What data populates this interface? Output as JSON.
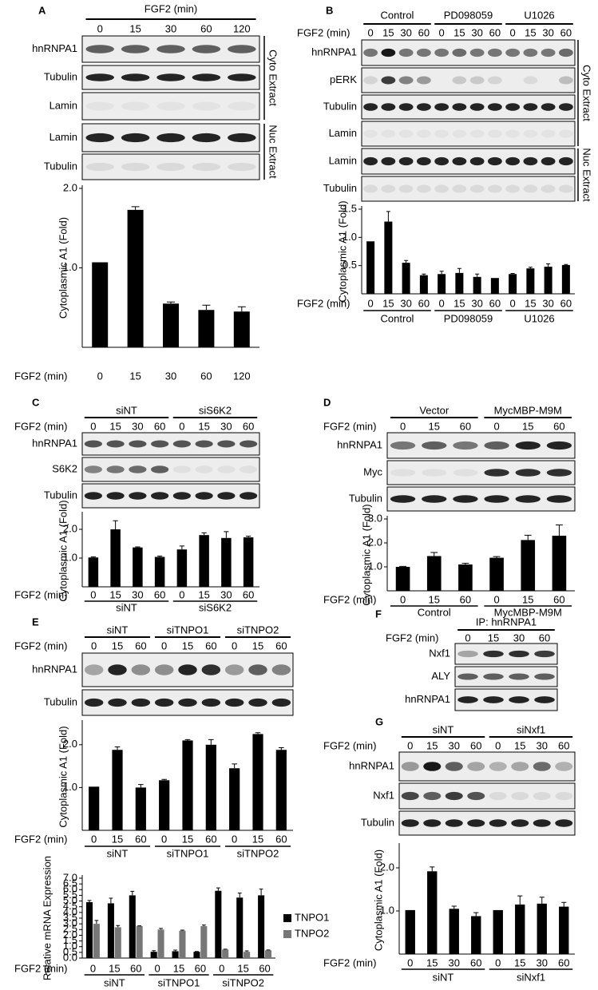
{
  "panels": [
    {
      "label": "A",
      "blot": {
        "header": [
          "FGF2 (min)"
        ],
        "lanes": [
          "0",
          "15",
          "30",
          "60",
          "120"
        ],
        "rows": [
          "hnRNPA1",
          "Tubulin",
          "Lamin",
          "Lamin",
          "Tubulin"
        ],
        "sides": [
          "Cyto Extract",
          "Nuc Extract"
        ]
      }
    },
    {
      "label": "B",
      "blot": {
        "header": [
          "Control",
          "PD098059",
          "U1026"
        ],
        "lane_title": "FGF2 (min)",
        "lanes": [
          "0",
          "15",
          "30",
          "60",
          "0",
          "15",
          "30",
          "60",
          "0",
          "15",
          "30",
          "60"
        ],
        "rows": [
          "hnRNPA1",
          "pERK",
          "Tubulin",
          "Lamin",
          "Lamin",
          "Tubulin"
        ],
        "sides": [
          "Cyto Extract",
          "Nuc Extract"
        ]
      }
    },
    {
      "label": "C",
      "blot": {
        "header": [
          "siNT",
          "siS6K2"
        ],
        "lane_title": "FGF2 (min)",
        "lanes": [
          "0",
          "15",
          "30",
          "60",
          "0",
          "15",
          "30",
          "60"
        ],
        "rows": [
          "hnRNPA1",
          "S6K2",
          "Tubulin"
        ]
      }
    },
    {
      "label": "D",
      "blot": {
        "header": [
          "Vector",
          "MycMBP-M9M"
        ],
        "lane_title": "FGF2 (min)",
        "lanes": [
          "0",
          "15",
          "60",
          "0",
          "15",
          "60"
        ],
        "rows": [
          "hnRNPA1",
          "Myc",
          "Tubulin"
        ]
      }
    },
    {
      "label": "E",
      "blot": {
        "header": [
          "siNT",
          "siTNPO1",
          "siTNPO2"
        ],
        "lane_title": "FGF2 (min)",
        "lanes": [
          "0",
          "15",
          "60",
          "0",
          "15",
          "60",
          "0",
          "15",
          "60"
        ],
        "rows": [
          "hnRNPA1",
          "Tubulin"
        ]
      }
    },
    {
      "label": "F",
      "blot": {
        "header": [
          "IP: hnRNPA1"
        ],
        "lane_title": "FGF2 (min)",
        "lanes": [
          "0",
          "15",
          "30",
          "60"
        ],
        "rows": [
          "Nxf1",
          "ALY",
          "hnRNPA1"
        ]
      }
    },
    {
      "label": "G",
      "blot": {
        "header": [
          "siNT",
          "siNxf1"
        ],
        "lane_title": "FGF2 (min)",
        "lanes": [
          "0",
          "15",
          "30",
          "60",
          "0",
          "15",
          "30",
          "60"
        ],
        "rows": [
          "hnRNPA1",
          "Nxf1",
          "Tubulin"
        ]
      }
    }
  ],
  "chart_data": [
    {
      "type": "bar",
      "ylabel": "Cytoplasmic A1 (Fold)",
      "xlabel": "FGF2 (min)",
      "categories": [
        "0",
        "15",
        "30",
        "60",
        "120"
      ],
      "values": [
        1.07,
        1.73,
        0.55,
        0.47,
        0.45
      ],
      "errors": [
        0,
        0.04,
        0.02,
        0.06,
        0.06
      ],
      "color": "#000000",
      "ylim": [
        0,
        2.0
      ],
      "yticks": [
        {
          "value": 1,
          "label": "1.0"
        },
        {
          "value": 2,
          "label": "2.0"
        }
      ]
    },
    {
      "type": "bar",
      "ylabel": "Cytoplasmic A1 (Fold)",
      "xlabel": "FGF2 (min)",
      "categories": [
        "0",
        "15",
        "30",
        "60",
        "0",
        "15",
        "30",
        "60",
        "0",
        "15",
        "30",
        "60"
      ],
      "groups": [
        "Control",
        "PD098059",
        "U1026"
      ],
      "values": [
        0.93,
        1.28,
        0.55,
        0.33,
        0.35,
        0.37,
        0.3,
        0.28,
        0.35,
        0.45,
        0.48,
        0.51
      ],
      "errors": [
        0,
        0.18,
        0.04,
        0.02,
        0.05,
        0.08,
        0.05,
        0,
        0.01,
        0.02,
        0.05,
        0.01
      ],
      "color": "#000000",
      "ylim": [
        0,
        1.5
      ],
      "yticks": [
        0.5,
        {
          "value": 1,
          "label": "1.0"
        },
        1.5
      ]
    },
    {
      "type": "bar",
      "ylabel": "Cytoplasmic A1 (Fold)",
      "xlabel": "FGF2 (min)",
      "categories": [
        "0",
        "15",
        "30",
        "60",
        "0",
        "15",
        "30",
        "60"
      ],
      "groups": [
        "siNT",
        "siS6K2"
      ],
      "values": [
        1.02,
        2.0,
        1.37,
        1.04,
        1.3,
        1.8,
        1.7,
        1.72
      ],
      "errors": [
        0.02,
        0.3,
        0.02,
        0.03,
        0.12,
        0.08,
        0.22,
        0.04
      ],
      "color": "#000000",
      "ylim": [
        0,
        2.5
      ],
      "yticks": [
        {
          "value": 1,
          "label": "1.0"
        },
        {
          "value": 2,
          "label": "2.0"
        }
      ]
    },
    {
      "type": "bar",
      "ylabel": "Cytoplasmic A1 (Fold)",
      "xlabel": "FGF2 (min)",
      "categories": [
        "0",
        "15",
        "60",
        "0",
        "15",
        "60"
      ],
      "groups": [
        "Control",
        "MycMBP-M9M"
      ],
      "values": [
        1.0,
        1.45,
        1.1,
        1.38,
        2.12,
        2.3
      ],
      "errors": [
        0.02,
        0.15,
        0.05,
        0.05,
        0.2,
        0.45
      ],
      "color": "#000000",
      "ylim": [
        0,
        3.0
      ],
      "yticks": [
        {
          "value": 1,
          "label": "1.0"
        },
        {
          "value": 2,
          "label": "2.0"
        },
        {
          "value": 3,
          "label": "3.0"
        }
      ]
    },
    {
      "type": "bar",
      "ylabel": "Cytoplasmic A1 (Fold)",
      "xlabel": "FGF2 (min)",
      "categories": [
        "0",
        "15",
        "60",
        "0",
        "15",
        "60",
        "0",
        "15",
        "60"
      ],
      "groups": [
        "siNT",
        "siTNPO1",
        "siTNPO2"
      ],
      "values": [
        1.02,
        1.88,
        1.0,
        1.17,
        2.1,
        2.0,
        1.45,
        2.25,
        1.88
      ],
      "errors": [
        0,
        0.07,
        0.07,
        0.02,
        0.02,
        0.12,
        0.1,
        0.03,
        0.05
      ],
      "color": "#000000",
      "ylim": [
        0,
        2.5
      ],
      "yticks": [
        {
          "value": 1,
          "label": "1.0"
        },
        {
          "value": 2,
          "label": "2.0"
        }
      ]
    },
    {
      "type": "grouped_bar",
      "ylabel": "Relative mRNA Expression",
      "xlabel": "FGF2 (min)",
      "categories": [
        "0",
        "15",
        "60",
        "0",
        "15",
        "60",
        "0",
        "15",
        "60"
      ],
      "groups": [
        "siNT",
        "siTNPO1",
        "siTNPO2"
      ],
      "series": [
        {
          "name": "TNPO1",
          "color": "#000000",
          "values": [
            4.9,
            4.8,
            5.5,
            0.55,
            0.6,
            0.55,
            5.9,
            5.3,
            5.5
          ],
          "errors": [
            0.15,
            0.45,
            0.35,
            0.1,
            0.1,
            0.03,
            0.25,
            0.4,
            0.55
          ]
        },
        {
          "name": "TNPO2",
          "color": "#777777",
          "values": [
            3.0,
            2.7,
            2.8,
            2.5,
            2.4,
            2.8,
            0.75,
            0.55,
            0.68
          ],
          "errors": [
            0.3,
            0.15,
            0.03,
            0.1,
            0.05,
            0.1,
            0.03,
            0.08,
            0.03
          ]
        }
      ],
      "legend": "right",
      "ylim": [
        0,
        7.0
      ],
      "yticks": [
        {
          "value": 0,
          "label": "0.0"
        },
        0.5,
        {
          "value": 1,
          "label": "1.0"
        },
        1.5,
        {
          "value": 2,
          "label": "2.0"
        },
        2.5,
        {
          "value": 3,
          "label": "3.0"
        },
        3.5,
        {
          "value": 4,
          "label": "4.0"
        },
        4.5,
        {
          "value": 5,
          "label": "5.0"
        },
        5.5,
        {
          "value": 6,
          "label": "6.0"
        },
        6.5,
        {
          "value": 7,
          "label": "7.0"
        }
      ]
    },
    {
      "type": "bar",
      "ylabel": "Cytoplasmic A1 (Fold)",
      "xlabel": "FGF2 (min)",
      "categories": [
        "0",
        "15",
        "30",
        "60",
        "0",
        "15",
        "30",
        "60"
      ],
      "groups": [
        "siNT",
        "siNxf1"
      ],
      "values": [
        1.02,
        1.92,
        1.05,
        0.88,
        1.02,
        1.15,
        1.17,
        1.1
      ],
      "errors": [
        0,
        0.1,
        0.06,
        0.08,
        0,
        0.2,
        0.15,
        0.1
      ],
      "color": "#000000",
      "ylim": [
        0,
        2.5
      ],
      "yticks": [
        {
          "value": 1,
          "label": "1.0"
        },
        {
          "value": 2,
          "label": "2.0"
        }
      ]
    }
  ]
}
